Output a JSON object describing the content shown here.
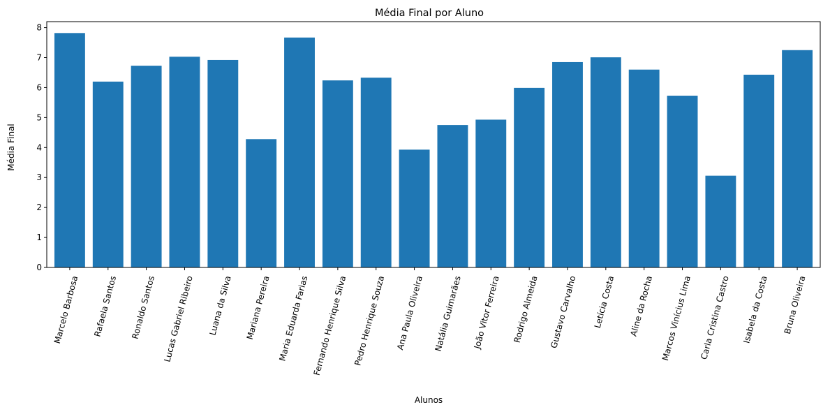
{
  "chart_data": {
    "type": "bar",
    "title": "Média Final por Aluno",
    "xlabel": "Alunos",
    "ylabel": "Média Final",
    "categories": [
      "Marcelo Barbosa",
      "Rafaela Santos",
      "Ronaldo Santos",
      "Lucas Gabriel Ribeiro",
      "Luana da Silva",
      "Mariana Pereira",
      "Maria Eduarda Farias",
      "Fernando Henrique Silva",
      "Pedro Henrique Souza",
      "Ana Paula Oliveira",
      "Natália Guimarães",
      "João Vitor Ferreira",
      "Rodrigo Almeida",
      "Gustavo Carvalho",
      "Letícia Costa",
      "Aline da Rocha",
      "Marcos Vinícius Lima",
      "Carla Cristina Castro",
      "Isabela da Costa",
      "Bruna Oliveira"
    ],
    "values": [
      7.82,
      6.2,
      6.73,
      7.03,
      6.92,
      4.28,
      7.67,
      6.24,
      6.33,
      3.93,
      4.75,
      4.93,
      5.99,
      6.85,
      7.01,
      6.6,
      5.73,
      3.06,
      6.43,
      7.25
    ],
    "ylim": [
      0,
      8.2
    ],
    "yticks": [
      0,
      1,
      2,
      3,
      4,
      5,
      6,
      7,
      8
    ],
    "grid": false,
    "bar_color": "#1f77b4"
  }
}
